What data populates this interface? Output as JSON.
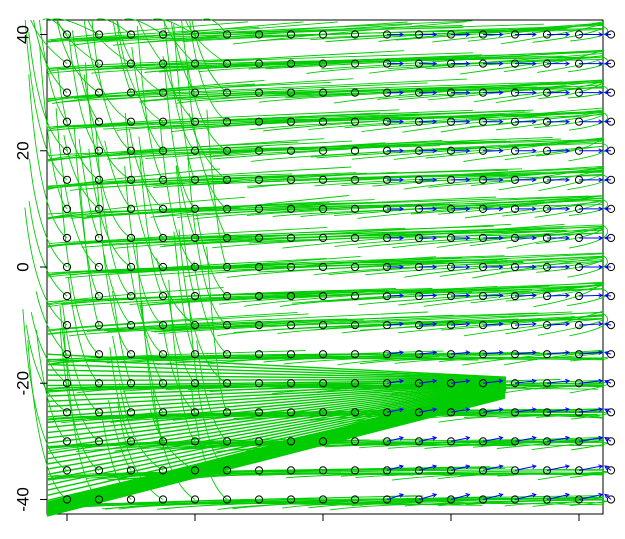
{
  "chart_data": {
    "type": "scatter",
    "title": "",
    "xlabel": "",
    "ylabel": "",
    "grid": false,
    "legend": "none",
    "x_grid_columns": 18,
    "y_values": [
      -40,
      -35,
      -30,
      -25,
      -20,
      -15,
      -10,
      -5,
      0,
      5,
      10,
      15,
      20,
      25,
      30,
      35,
      40
    ],
    "ylim": [
      -42.5,
      42.5
    ],
    "y_ticks": [
      -40,
      -20,
      0,
      20,
      40
    ],
    "y_tick_labels": [
      "-40",
      "-20",
      "0",
      "20",
      "40"
    ],
    "x_ticks_count": 5,
    "series": [
      {
        "kind": "points",
        "marker": "open-circle",
        "color": "#000000"
      },
      {
        "kind": "arrows",
        "color": "#0000ff"
      },
      {
        "kind": "trajectories",
        "color": "#00cc00"
      }
    ]
  }
}
